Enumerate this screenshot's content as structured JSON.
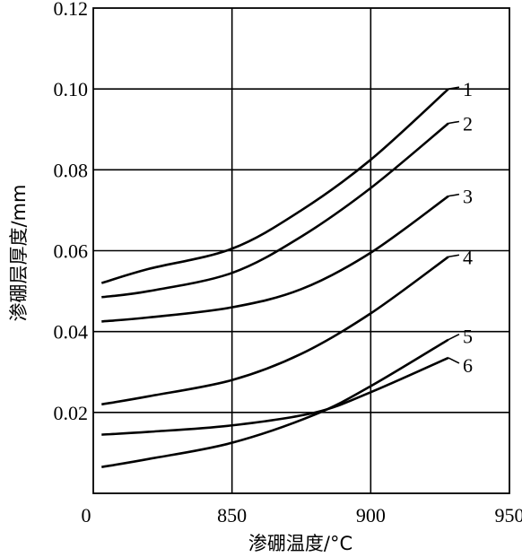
{
  "chart_data": {
    "type": "line",
    "xlabel": "渗硼温度/°C",
    "ylabel": "渗硼层厚度/mm",
    "xlim": [
      800,
      950
    ],
    "ylim": [
      0,
      0.12
    ],
    "x_ticks": [
      "0",
      "850",
      "900",
      "950"
    ],
    "y_ticks": [
      "0.02",
      "0.04",
      "0.06",
      "0.08",
      "0.10",
      "0.12"
    ],
    "grid": true,
    "series": [
      {
        "name": "1",
        "x": [
          803,
          820,
          850,
          875,
          900,
          928
        ],
        "y": [
          0.052,
          0.0555,
          0.0605,
          0.07,
          0.0825,
          0.1
        ]
      },
      {
        "name": "2",
        "x": [
          803,
          820,
          850,
          875,
          900,
          928
        ],
        "y": [
          0.0485,
          0.05,
          0.0545,
          0.0635,
          0.0755,
          0.0915
        ]
      },
      {
        "name": "3",
        "x": [
          803,
          820,
          850,
          875,
          900,
          928
        ],
        "y": [
          0.0425,
          0.0435,
          0.046,
          0.0505,
          0.0595,
          0.0735
        ]
      },
      {
        "name": "4",
        "x": [
          803,
          820,
          850,
          875,
          900,
          928
        ],
        "y": [
          0.022,
          0.024,
          0.028,
          0.0345,
          0.0445,
          0.0585
        ]
      },
      {
        "name": "5",
        "x": [
          803,
          820,
          850,
          880,
          900,
          928
        ],
        "y": [
          0.0065,
          0.0085,
          0.0125,
          0.0195,
          0.0265,
          0.038
        ]
      },
      {
        "name": "6",
        "x": [
          803,
          820,
          850,
          880,
          900,
          928
        ],
        "y": [
          0.0145,
          0.0152,
          0.0168,
          0.02,
          0.025,
          0.0335
        ]
      }
    ]
  }
}
